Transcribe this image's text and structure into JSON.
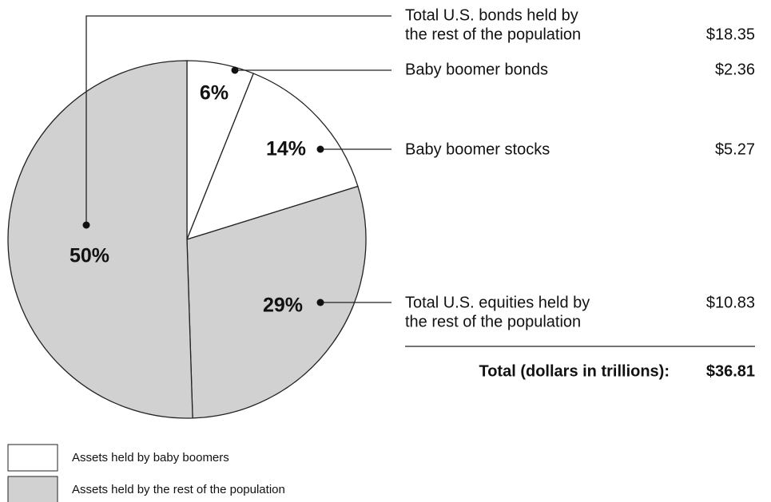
{
  "chart_data": {
    "type": "pie",
    "categories": [
      [
        "Baby boomer bonds"
      ],
      [
        "Baby boomer stocks"
      ],
      [
        "Total U.S. equities held by",
        "the rest of the population"
      ],
      [
        "Total U.S. bonds held by",
        "the rest of the population"
      ]
    ],
    "values": [
      6,
      14,
      29,
      50
    ],
    "value_labels": [
      "6%",
      "14%",
      "29%",
      "50%"
    ],
    "amounts": [
      "$2.36",
      "$5.27",
      "$10.83",
      "$18.35"
    ],
    "colors": [
      "#ffffff",
      "#ffffff",
      "#d1d1d1",
      "#d1d1d1"
    ],
    "total_label": "Total (dollars in trillions):",
    "total_amount": "$36.81",
    "legend": [
      {
        "label": "Assets held by baby boomers",
        "color": "#ffffff"
      },
      {
        "label": "Assets held by the rest of the population",
        "color": "#d1d1d1"
      }
    ]
  }
}
